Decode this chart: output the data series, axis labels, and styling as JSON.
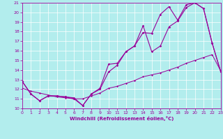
{
  "xlabel": "Windchill (Refroidissement éolien,°C)",
  "xlim": [
    0,
    23
  ],
  "ylim": [
    10,
    21
  ],
  "yticks": [
    10,
    11,
    12,
    13,
    14,
    15,
    16,
    17,
    18,
    19,
    20,
    21
  ],
  "xticks": [
    0,
    1,
    2,
    3,
    4,
    5,
    6,
    7,
    8,
    9,
    10,
    11,
    12,
    13,
    14,
    15,
    16,
    17,
    18,
    19,
    20,
    21,
    22,
    23
  ],
  "bg_color": "#b2eded",
  "line_color": "#990099",
  "line1_x": [
    0,
    1,
    2,
    3,
    4,
    5,
    6,
    7,
    8,
    9,
    10,
    11,
    12,
    13,
    14,
    15,
    16,
    17,
    18,
    19,
    20,
    21,
    22,
    23
  ],
  "line1_y": [
    12.8,
    11.5,
    10.8,
    11.3,
    11.3,
    11.2,
    11.1,
    10.3,
    11.5,
    12.0,
    13.8,
    14.5,
    15.9,
    16.5,
    18.6,
    15.9,
    16.5,
    18.5,
    19.1,
    20.5,
    21.0,
    20.4,
    16.8,
    13.8
  ],
  "line2_x": [
    0,
    1,
    2,
    3,
    4,
    5,
    6,
    7,
    8,
    9,
    10,
    11,
    12,
    13,
    14,
    15,
    16,
    17,
    18,
    19,
    20,
    21,
    22,
    23
  ],
  "line2_y": [
    12.8,
    11.5,
    10.8,
    11.3,
    11.3,
    11.2,
    11.0,
    10.3,
    11.5,
    12.1,
    14.6,
    14.7,
    15.9,
    16.5,
    17.9,
    17.8,
    19.8,
    20.6,
    19.2,
    20.8,
    21.0,
    20.4,
    16.8,
    13.8
  ],
  "line3_x": [
    0,
    1,
    2,
    3,
    4,
    5,
    6,
    7,
    8,
    9,
    10,
    11,
    12,
    13,
    14,
    15,
    16,
    17,
    18,
    19,
    20,
    21,
    22,
    23
  ],
  "line3_y": [
    12.1,
    11.8,
    11.6,
    11.4,
    11.2,
    11.1,
    11.0,
    11.0,
    11.3,
    11.6,
    12.1,
    12.3,
    12.6,
    12.9,
    13.3,
    13.5,
    13.7,
    14.0,
    14.3,
    14.7,
    15.0,
    15.3,
    15.6,
    13.9
  ]
}
